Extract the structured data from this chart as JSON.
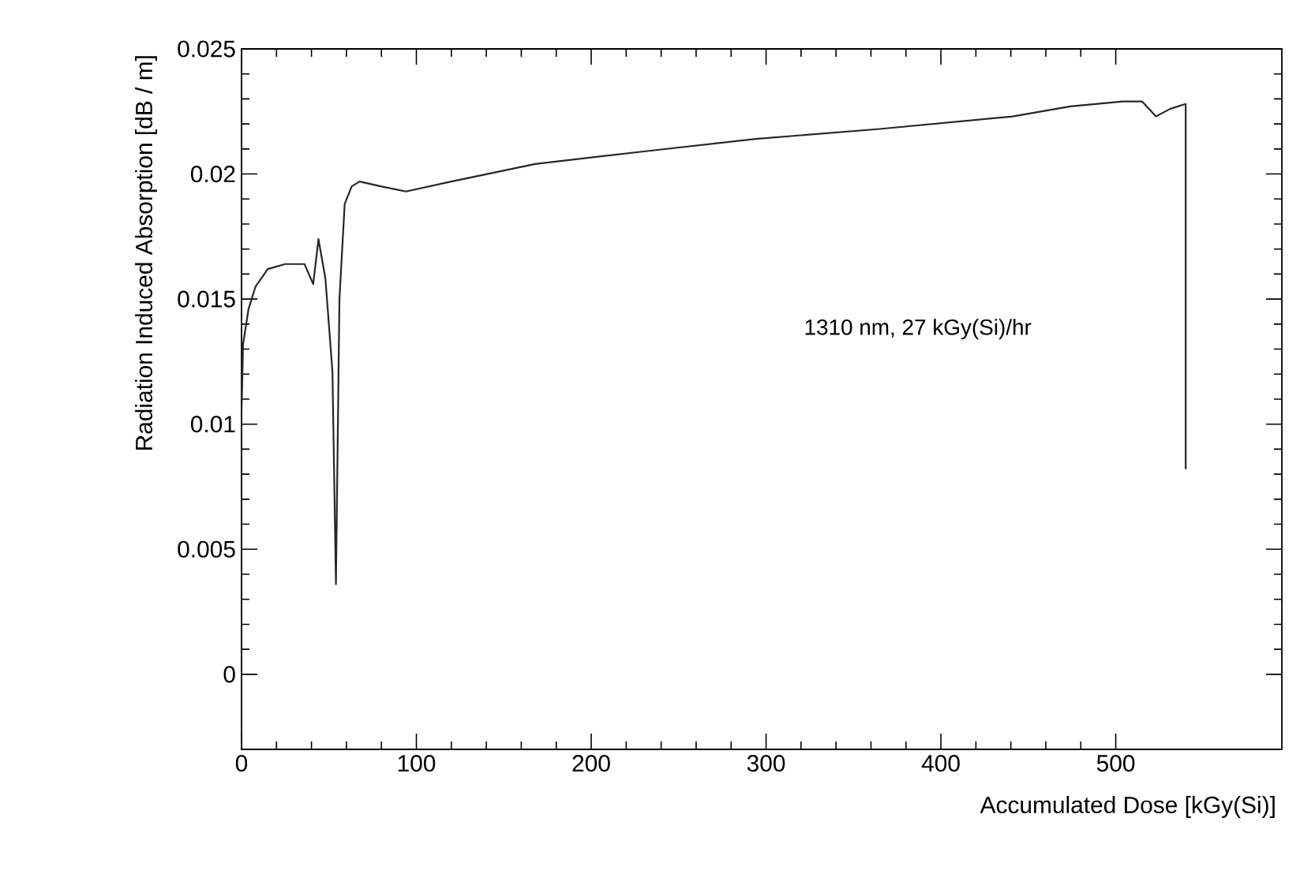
{
  "chart_data": {
    "type": "line",
    "xlabel": "Accumulated Dose [kGy(Si)]",
    "ylabel": "Radiation Induced Absorption [dB / m]",
    "annotations": [
      "1310 nm, 27 kGy(Si)/hr"
    ],
    "xlim": [
      0,
      595
    ],
    "ylim": [
      -0.003,
      0.025
    ],
    "xticks": [
      0,
      100,
      200,
      300,
      400,
      500
    ],
    "yticks": [
      0,
      0.005,
      0.01,
      0.015,
      0.02,
      0.025
    ],
    "grid": false,
    "marker": "none",
    "line_style": "solid",
    "series": [
      {
        "color": "#262626",
        "x": [
          0,
          0.9,
          4,
          8,
          15,
          25,
          36,
          41,
          44,
          48,
          52,
          54,
          56,
          59,
          63,
          67.5,
          80,
          94,
          120,
          168,
          230,
          294,
          365,
          441,
          474,
          504,
          515,
          523,
          531,
          540,
          540
        ],
        "values": [
          0.0105,
          0.0132,
          0.0146,
          0.0155,
          0.0162,
          0.0164,
          0.0164,
          0.0156,
          0.0174,
          0.0158,
          0.0121,
          0.0036,
          0.015,
          0.0188,
          0.0195,
          0.0197,
          0.0195,
          0.0193,
          0.0197,
          0.0204,
          0.0209,
          0.0214,
          0.0218,
          0.0223,
          0.0227,
          0.0229,
          0.0229,
          0.0223,
          0.0226,
          0.0228,
          0.0082
        ]
      }
    ]
  }
}
